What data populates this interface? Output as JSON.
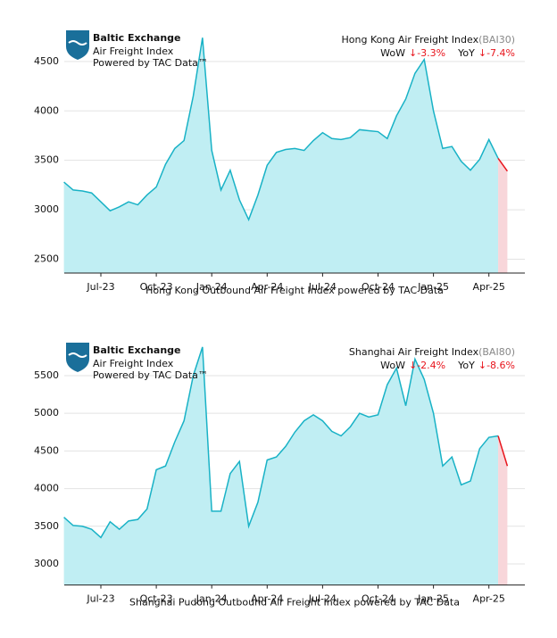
{
  "chart_data": [
    {
      "type": "area",
      "title": "Hong Kong Air Freight Index",
      "code": "(BAI30)",
      "logo": {
        "name": "Baltic Exchange",
        "product": "Air Freight Index",
        "credit": "Powered by TAC Data™"
      },
      "annotations": [
        {
          "label": "WoW",
          "text": "↓-3.3%"
        },
        {
          "label": "YoY",
          "text": "↓-7.4%"
        }
      ],
      "caption": "Hong Kong Outbound Air Freight Index powered by TAC Data",
      "categories": [
        null,
        null,
        null,
        null,
        "Jul-23",
        null,
        null,
        null,
        null,
        null,
        "Oct-23",
        null,
        null,
        null,
        null,
        null,
        "Jan-24",
        null,
        null,
        null,
        null,
        null,
        "Apr-24",
        null,
        null,
        null,
        null,
        null,
        "Jul-24",
        null,
        null,
        null,
        null,
        null,
        "Oct-24",
        null,
        null,
        null,
        null,
        null,
        "Jan-25",
        null,
        null,
        null,
        null,
        null,
        "Apr-25",
        null,
        null
      ],
      "values": [
        3280,
        3200,
        3190,
        3170,
        3080,
        2990,
        3030,
        3080,
        3050,
        3150,
        3230,
        3460,
        3620,
        3700,
        4150,
        4740,
        3600,
        3200,
        3400,
        3100,
        2900,
        3150,
        3450,
        3580,
        3610,
        3620,
        3600,
        3700,
        3780,
        3720,
        3710,
        3730,
        3810,
        3800,
        3790,
        3720,
        3950,
        4120,
        4380,
        4520,
        4000,
        3620,
        3640,
        3490,
        3400,
        3510,
        3710,
        3520,
        3390
      ],
      "color": "#19b2c6",
      "fill_color": "#c0eef3",
      "last_segment_color": "#e8141c",
      "ylim": [
        2360,
        4850
      ],
      "yticks": [
        2500,
        3000,
        3500,
        4000,
        4500
      ],
      "grid": true
    },
    {
      "type": "area",
      "title": "Shanghai Air Freight Index",
      "code": "(BAI80)",
      "logo": {
        "name": "Baltic Exchange",
        "product": "Air Freight Index",
        "credit": "Powered by TAC Data™"
      },
      "annotations": [
        {
          "label": "WoW",
          "text": "↓-2.4%"
        },
        {
          "label": "YoY",
          "text": "↓-8.6%"
        }
      ],
      "caption": "Shanghai Pudong Outbound Air Freight Index powered by TAC Data",
      "categories": [
        null,
        null,
        null,
        null,
        "Jul-23",
        null,
        null,
        null,
        null,
        null,
        "Oct-23",
        null,
        null,
        null,
        null,
        null,
        "Jan-24",
        null,
        null,
        null,
        null,
        null,
        "Apr-24",
        null,
        null,
        null,
        null,
        null,
        "Jul-24",
        null,
        null,
        null,
        null,
        null,
        "Oct-24",
        null,
        null,
        null,
        null,
        null,
        "Jan-25",
        null,
        null,
        null,
        null,
        null,
        "Apr-25",
        null,
        null
      ],
      "values": [
        3620,
        3510,
        3500,
        3460,
        3350,
        3560,
        3460,
        3570,
        3590,
        3730,
        4250,
        4300,
        4620,
        4900,
        5500,
        5880,
        3700,
        3700,
        4200,
        4360,
        3500,
        3820,
        4380,
        4420,
        4560,
        4750,
        4900,
        4980,
        4900,
        4760,
        4700,
        4820,
        5000,
        4950,
        4980,
        5380,
        5600,
        5100,
        5720,
        5450,
        5000,
        4300,
        4420,
        4050,
        4100,
        4530,
        4680,
        4700,
        4300
      ],
      "color": "#19b2c6",
      "fill_color": "#c0eef3",
      "last_segment_color": "#e8141c",
      "ylim": [
        2720,
        5990
      ],
      "yticks": [
        3000,
        3500,
        4000,
        4500,
        5000,
        5500
      ],
      "grid": true
    }
  ]
}
